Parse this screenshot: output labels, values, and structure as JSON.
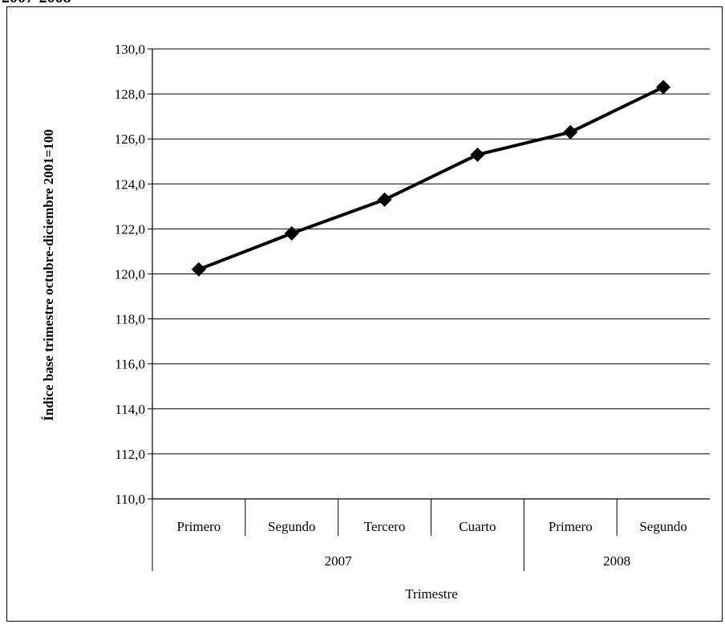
{
  "page": {
    "top_title": "2007-2008"
  },
  "chart_data": {
    "type": "line",
    "title": "",
    "ylabel": "Índice base trimestre octubre-diciembre 2001=100",
    "xlabel": "Trimestre",
    "categories": [
      "Primero",
      "Segundo",
      "Tercero",
      "Cuarto",
      "Primero",
      "Segundo"
    ],
    "groups": [
      {
        "label": "2007",
        "span": 4
      },
      {
        "label": "2008",
        "span": 2
      }
    ],
    "series": [
      {
        "values": [
          120.2,
          121.8,
          123.3,
          125.3,
          126.3,
          128.3
        ]
      }
    ],
    "ylim": [
      110,
      130
    ],
    "yticks": [
      "110,0",
      "112,0",
      "114,0",
      "116,0",
      "118,0",
      "120,0",
      "122,0",
      "124,0",
      "126,0",
      "128,0",
      "130,0"
    ],
    "ytick_values": [
      110,
      112,
      114,
      116,
      118,
      120,
      122,
      124,
      126,
      128,
      130
    ],
    "grid": true,
    "legend": "none",
    "colors": {
      "line": "#000000",
      "grid": "#000000"
    }
  }
}
